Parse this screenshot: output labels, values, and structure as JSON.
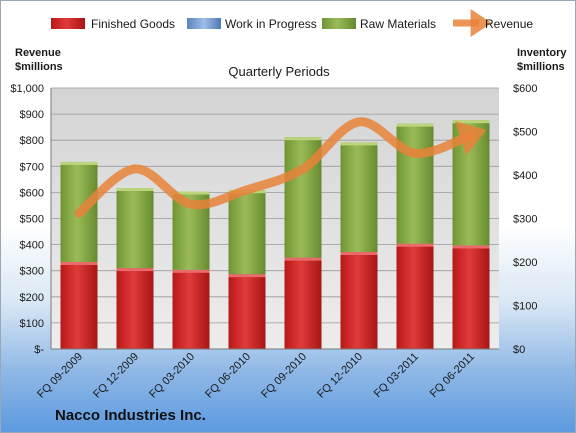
{
  "chart_data": {
    "type": "bar",
    "stacked": true,
    "title": "Quarterly Periods",
    "footer": "Nacco Industries Inc.",
    "categories": [
      "FQ 09-2009",
      "FQ 12-2009",
      "FQ 03-2010",
      "FQ 06-2010",
      "FQ 09-2010",
      "FQ 12-2010",
      "FQ 03-2011",
      "FQ 06-2011"
    ],
    "series": [
      {
        "name": "Finished Goods",
        "axis": "right",
        "color": "#d42a2a",
        "values": [
          200,
          186,
          182,
          172,
          210,
          223,
          242,
          238
        ]
      },
      {
        "name": "Work in Progress",
        "axis": "right",
        "color": "#7fa6d9",
        "values": [
          0,
          0,
          0,
          0,
          0,
          0,
          0,
          0
        ]
      },
      {
        "name": "Raw Materials",
        "axis": "right",
        "color": "#8fb04a",
        "values": [
          230,
          184,
          180,
          193,
          277,
          252,
          276,
          288
        ]
      },
      {
        "name": "Revenue",
        "axis": "left",
        "type": "line",
        "color": "#e8823a",
        "values": [
          520,
          690,
          555,
          610,
          690,
          870,
          750,
          820
        ]
      }
    ],
    "y_left": {
      "label_line1": "Revenue",
      "label_line2": "$millions",
      "min": 0,
      "max": 1000,
      "step": 100,
      "tick_labels": [
        "$-",
        "$100",
        "$200",
        "$300",
        "$400",
        "$500",
        "$600",
        "$700",
        "$800",
        "$900",
        "$1,000"
      ]
    },
    "y_right": {
      "label_line1": "Inventory",
      "label_line2": "$millions",
      "min": 0,
      "max": 600,
      "step": 100,
      "tick_labels": [
        "$0",
        "$100",
        "$200",
        "$300",
        "$400",
        "$500",
        "$600"
      ]
    },
    "grid": true,
    "legend_position": "top"
  }
}
